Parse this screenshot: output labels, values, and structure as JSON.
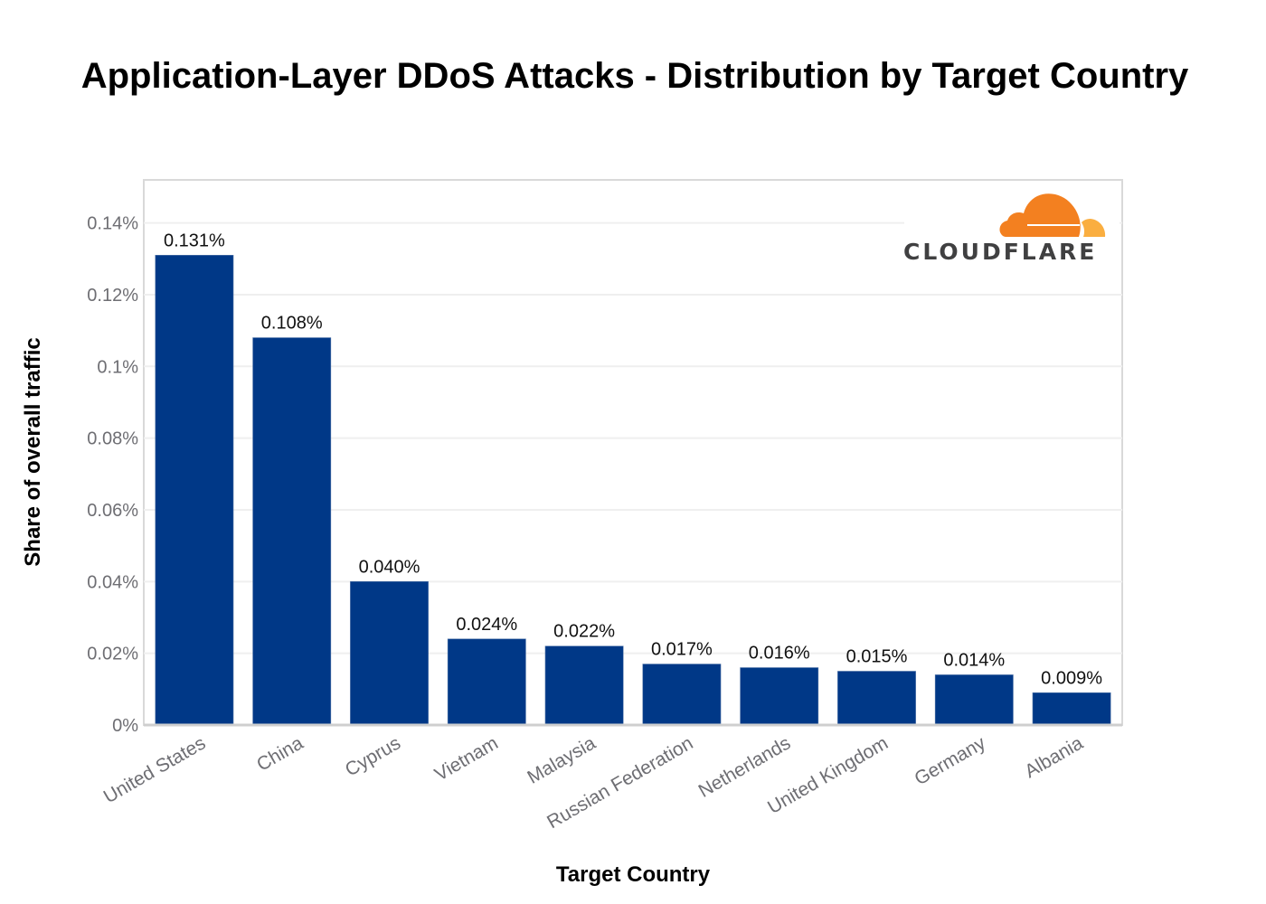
{
  "chart_data": {
    "type": "bar",
    "title": "Application-Layer DDoS Attacks - Distribution by Target Country",
    "xlabel": "Target Country",
    "ylabel": "Share of overall traffic",
    "categories": [
      "United States",
      "China",
      "Cyprus",
      "Vietnam",
      "Malaysia",
      "Russian Federation",
      "Netherlands",
      "United Kingdom",
      "Germany",
      "Albania"
    ],
    "values": [
      0.131,
      0.108,
      0.04,
      0.024,
      0.022,
      0.017,
      0.016,
      0.015,
      0.014,
      0.009
    ],
    "data_labels": [
      "0.131%",
      "0.108%",
      "0.040%",
      "0.024%",
      "0.022%",
      "0.017%",
      "0.016%",
      "0.015%",
      "0.014%",
      "0.009%"
    ],
    "y_ticks": [
      0,
      0.02,
      0.04,
      0.06,
      0.08,
      0.1,
      0.12,
      0.14
    ],
    "y_tick_labels": [
      "0%",
      "0.02%",
      "0.04%",
      "0.06%",
      "0.08%",
      "0.1%",
      "0.12%",
      "0.14%"
    ],
    "ylim": [
      0,
      0.152
    ],
    "grid": true,
    "legend": "none",
    "bar_color": "#003887",
    "unit": "%"
  },
  "branding": {
    "logo_text": "CLOUDFLARE",
    "logo_primary_color": "#f38020",
    "logo_secondary_color": "#faae40",
    "placement": "top-right"
  }
}
